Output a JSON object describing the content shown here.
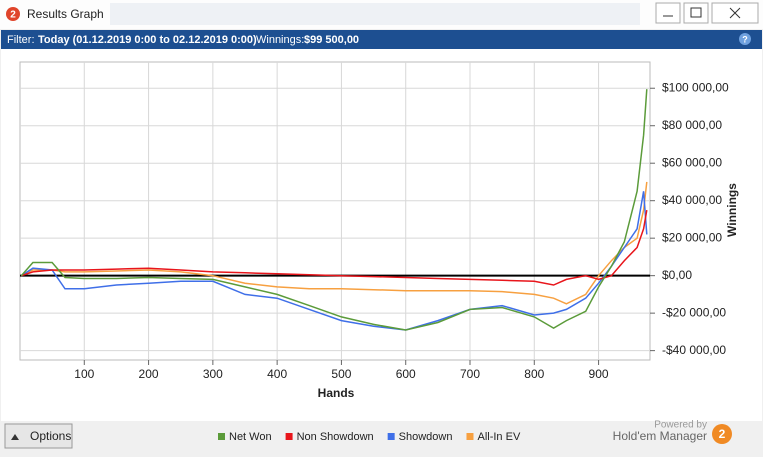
{
  "window": {
    "icon": "2",
    "title": "Results Graph",
    "help": "?"
  },
  "filter": {
    "label": "Filter:",
    "range": "Today (01.12.2019 0:00 to 02.12.2019 0:00)",
    "winnings_label": "Winnings:",
    "winnings": "$99 500,00"
  },
  "chart_data": {
    "type": "line",
    "xlabel": "Hands",
    "ylabel": "Winnings",
    "x": [
      2,
      20,
      50,
      70,
      100,
      150,
      200,
      250,
      300,
      350,
      400,
      450,
      500,
      550,
      600,
      650,
      700,
      750,
      800,
      830,
      850,
      880,
      900,
      920,
      940,
      960,
      970,
      975
    ],
    "series": [
      {
        "name": "Net Won",
        "color": "#5b9b3a",
        "values": [
          0,
          7000,
          7000,
          -1000,
          -1500,
          -1500,
          -1000,
          -1500,
          -2000,
          -6000,
          -10000,
          -16000,
          -22000,
          -26000,
          -29000,
          -25000,
          -18000,
          -17000,
          -22000,
          -28000,
          -24000,
          -19000,
          -6000,
          5000,
          18000,
          45000,
          75000,
          99500
        ]
      },
      {
        "name": "Non Showdown",
        "color": "#e8151b",
        "values": [
          0,
          2000,
          3000,
          3000,
          3000,
          3500,
          4000,
          3000,
          2000,
          1500,
          1000,
          500,
          0,
          -500,
          -1000,
          -1500,
          -2000,
          -2500,
          -3000,
          -5000,
          -2000,
          0,
          -2000,
          0,
          8000,
          15000,
          25000,
          35000
        ]
      },
      {
        "name": "Showdown",
        "color": "#3f6fe8",
        "values": [
          0,
          4000,
          3000,
          -7000,
          -7000,
          -5000,
          -4000,
          -3000,
          -3000,
          -10000,
          -12000,
          -18000,
          -24000,
          -27000,
          -29000,
          -24000,
          -18000,
          -16000,
          -21000,
          -20000,
          -18000,
          -12000,
          -4000,
          5000,
          15000,
          25000,
          45000,
          22000
        ]
      },
      {
        "name": "All-In EV",
        "color": "#f7a040",
        "values": [
          0,
          3000,
          3000,
          2000,
          2000,
          2500,
          3000,
          2000,
          0,
          -4000,
          -6000,
          -7000,
          -7000,
          -7500,
          -8000,
          -8000,
          -8000,
          -8500,
          -10000,
          -12000,
          -15000,
          -10000,
          0,
          8000,
          15000,
          20000,
          35000,
          50000
        ]
      }
    ],
    "xlim": [
      0,
      980
    ],
    "ylim": [
      -45000,
      114000
    ],
    "xticks": [
      100,
      200,
      300,
      400,
      500,
      600,
      700,
      800,
      900
    ],
    "yticks": [
      {
        "value": -40000,
        "label": "-$40 000,00"
      },
      {
        "value": -20000,
        "label": "-$20 000,00"
      },
      {
        "value": 0,
        "label": "$0,00"
      },
      {
        "value": 20000,
        "label": "$20 000,00"
      },
      {
        "value": 40000,
        "label": "$40 000,00"
      },
      {
        "value": 60000,
        "label": "$60 000,00"
      },
      {
        "value": 80000,
        "label": "$80 000,00"
      },
      {
        "value": 100000,
        "label": "$100 000,00"
      }
    ],
    "grid": true,
    "zero_line": true,
    "legend": "bottom"
  },
  "footer": {
    "options": "Options",
    "powered_by": "Powered by",
    "brand": "Hold'em Manager",
    "brand_icon": "2"
  }
}
